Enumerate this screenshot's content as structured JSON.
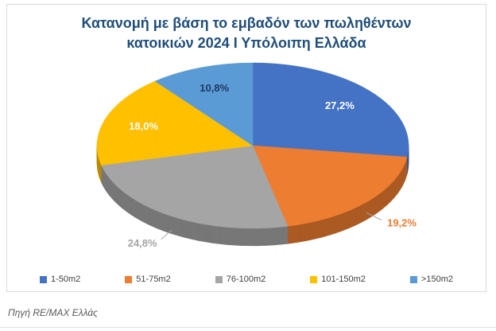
{
  "header": {
    "title_line1": "Κατανομή με βάση το εμβαδόν των πωληθέντων",
    "title_line2": "κατοικιών 2024 Ι Υπόλοιπη Ελλάδα"
  },
  "chart_data": {
    "type": "pie",
    "style": "3d",
    "title": "Κατανομή με βάση το εμβαδόν των πωληθέντων κατοικιών 2024 Ι Υπόλοιπη Ελλάδα",
    "categories": [
      "1-50m2",
      "51-75m2",
      "76-100m2",
      "101-150m2",
      ">150m2"
    ],
    "values": [
      27.2,
      19.2,
      24.8,
      18,
      10.8
    ],
    "value_labels": [
      "27,2%",
      "19,2%",
      "24,8%",
      "18,0%",
      "10,8%"
    ],
    "colors": [
      "#4472C4",
      "#ED7D31",
      "#A5A5A5",
      "#FFC000",
      "#5B9BD5"
    ],
    "label_colors": [
      "#FFFFFF",
      "#ED7D31",
      "#A5A5A5",
      "#FFFFFF",
      "#1F3864"
    ],
    "label_placement": [
      "inside",
      "outside",
      "outside",
      "inside",
      "inside"
    ],
    "start_angle": 0,
    "direction": "clockwise",
    "legend_position": "bottom",
    "grid": false
  },
  "footer": {
    "source": "Πηγή RE/MAX Ελλάς"
  },
  "theme": {
    "title_color": "#1F4E79",
    "frame_border": "#D9D9D9",
    "legend_text": "#404040",
    "source_text": "#595959",
    "leader_line": "#A6A6A6",
    "background": "#FFFFFF"
  }
}
